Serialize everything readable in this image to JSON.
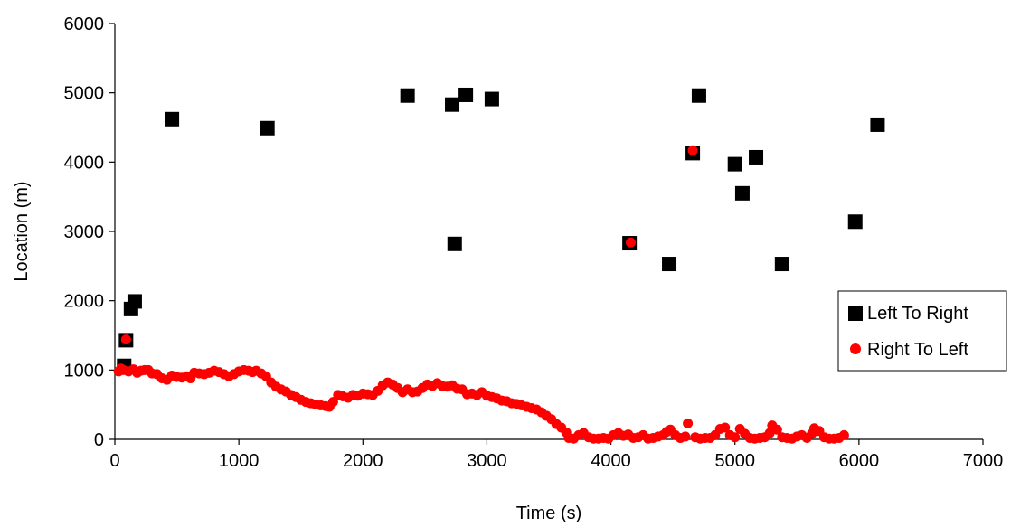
{
  "chart_data": {
    "type": "scatter",
    "xlabel": "Time (s)",
    "ylabel": "Location (m)",
    "xlim": [
      0,
      7000
    ],
    "ylim": [
      0,
      6000
    ],
    "xticks": [
      0,
      1000,
      2000,
      3000,
      4000,
      5000,
      6000,
      7000
    ],
    "yticks": [
      0,
      1000,
      2000,
      3000,
      4000,
      5000,
      6000
    ],
    "grid": false,
    "legend_position": "right",
    "series": [
      {
        "name": "Left To Right",
        "marker": "square",
        "color": "#000000",
        "points": [
          [
            75,
            1060
          ],
          [
            90,
            1430
          ],
          [
            130,
            1880
          ],
          [
            160,
            1990
          ],
          [
            460,
            4620
          ],
          [
            1230,
            4490
          ],
          [
            2360,
            4960
          ],
          [
            2720,
            4830
          ],
          [
            2740,
            2820
          ],
          [
            2830,
            4970
          ],
          [
            3040,
            4910
          ],
          [
            4150,
            2830
          ],
          [
            4470,
            2530
          ],
          [
            4660,
            4130
          ],
          [
            4710,
            4960
          ],
          [
            5000,
            3970
          ],
          [
            5060,
            3550
          ],
          [
            5170,
            4070
          ],
          [
            5380,
            2530
          ],
          [
            5970,
            3140
          ],
          [
            6150,
            4540
          ]
        ]
      },
      {
        "name": "Right To Left",
        "marker": "circle",
        "color": "#ff0000",
        "points": [
          [
            30,
            980
          ],
          [
            50,
            1020
          ],
          [
            70,
            1000
          ],
          [
            90,
            1440
          ],
          [
            110,
            980
          ],
          [
            150,
            1010
          ],
          [
            180,
            960
          ],
          [
            210,
            990
          ],
          [
            240,
            1000
          ],
          [
            270,
            1000
          ],
          [
            300,
            950
          ],
          [
            340,
            940
          ],
          [
            380,
            880
          ],
          [
            420,
            860
          ],
          [
            460,
            920
          ],
          [
            500,
            900
          ],
          [
            540,
            890
          ],
          [
            580,
            910
          ],
          [
            610,
            880
          ],
          [
            640,
            960
          ],
          [
            680,
            950
          ],
          [
            720,
            940
          ],
          [
            760,
            960
          ],
          [
            800,
            990
          ],
          [
            840,
            970
          ],
          [
            880,
            940
          ],
          [
            920,
            910
          ],
          [
            960,
            940
          ],
          [
            1000,
            980
          ],
          [
            1040,
            1000
          ],
          [
            1080,
            990
          ],
          [
            1110,
            970
          ],
          [
            1140,
            990
          ],
          [
            1180,
            950
          ],
          [
            1220,
            910
          ],
          [
            1260,
            820
          ],
          [
            1300,
            760
          ],
          [
            1340,
            720
          ],
          [
            1380,
            690
          ],
          [
            1420,
            640
          ],
          [
            1460,
            610
          ],
          [
            1500,
            570
          ],
          [
            1540,
            540
          ],
          [
            1580,
            520
          ],
          [
            1620,
            500
          ],
          [
            1660,
            490
          ],
          [
            1700,
            480
          ],
          [
            1730,
            470
          ],
          [
            1760,
            540
          ],
          [
            1800,
            640
          ],
          [
            1840,
            620
          ],
          [
            1880,
            600
          ],
          [
            1920,
            640
          ],
          [
            1960,
            630
          ],
          [
            2000,
            660
          ],
          [
            2040,
            650
          ],
          [
            2080,
            640
          ],
          [
            2120,
            700
          ],
          [
            2160,
            780
          ],
          [
            2200,
            820
          ],
          [
            2240,
            790
          ],
          [
            2280,
            740
          ],
          [
            2320,
            680
          ],
          [
            2360,
            720
          ],
          [
            2400,
            680
          ],
          [
            2440,
            690
          ],
          [
            2480,
            740
          ],
          [
            2520,
            790
          ],
          [
            2560,
            770
          ],
          [
            2600,
            810
          ],
          [
            2640,
            770
          ],
          [
            2680,
            760
          ],
          [
            2720,
            780
          ],
          [
            2760,
            730
          ],
          [
            2800,
            720
          ],
          [
            2840,
            650
          ],
          [
            2880,
            660
          ],
          [
            2920,
            640
          ],
          [
            2960,
            680
          ],
          [
            3000,
            630
          ],
          [
            3040,
            610
          ],
          [
            3080,
            590
          ],
          [
            3120,
            560
          ],
          [
            3160,
            550
          ],
          [
            3200,
            520
          ],
          [
            3240,
            510
          ],
          [
            3280,
            490
          ],
          [
            3320,
            470
          ],
          [
            3360,
            450
          ],
          [
            3400,
            430
          ],
          [
            3440,
            390
          ],
          [
            3480,
            340
          ],
          [
            3520,
            290
          ],
          [
            3560,
            220
          ],
          [
            3600,
            170
          ],
          [
            3640,
            100
          ],
          [
            3660,
            20
          ],
          [
            3700,
            10
          ],
          [
            3740,
            60
          ],
          [
            3780,
            90
          ],
          [
            3820,
            30
          ],
          [
            3860,
            10
          ],
          [
            3900,
            10
          ],
          [
            3940,
            20
          ],
          [
            3980,
            10
          ],
          [
            4020,
            60
          ],
          [
            4060,
            90
          ],
          [
            4100,
            50
          ],
          [
            4140,
            70
          ],
          [
            4160,
            2840
          ],
          [
            4180,
            20
          ],
          [
            4220,
            30
          ],
          [
            4260,
            60
          ],
          [
            4300,
            10
          ],
          [
            4340,
            20
          ],
          [
            4380,
            40
          ],
          [
            4420,
            60
          ],
          [
            4450,
            110
          ],
          [
            4480,
            140
          ],
          [
            4520,
            60
          ],
          [
            4560,
            20
          ],
          [
            4600,
            40
          ],
          [
            4620,
            230
          ],
          [
            4660,
            4170
          ],
          [
            4680,
            30
          ],
          [
            4720,
            10
          ],
          [
            4760,
            20
          ],
          [
            4800,
            20
          ],
          [
            4840,
            60
          ],
          [
            4880,
            150
          ],
          [
            4920,
            170
          ],
          [
            4960,
            60
          ],
          [
            5000,
            30
          ],
          [
            5040,
            150
          ],
          [
            5080,
            80
          ],
          [
            5120,
            20
          ],
          [
            5160,
            10
          ],
          [
            5200,
            20
          ],
          [
            5240,
            30
          ],
          [
            5280,
            90
          ],
          [
            5300,
            200
          ],
          [
            5340,
            140
          ],
          [
            5380,
            30
          ],
          [
            5420,
            20
          ],
          [
            5460,
            10
          ],
          [
            5500,
            40
          ],
          [
            5540,
            60
          ],
          [
            5580,
            20
          ],
          [
            5620,
            80
          ],
          [
            5640,
            160
          ],
          [
            5680,
            120
          ],
          [
            5720,
            30
          ],
          [
            5760,
            10
          ],
          [
            5800,
            10
          ],
          [
            5840,
            20
          ],
          [
            5880,
            60
          ]
        ]
      }
    ]
  }
}
